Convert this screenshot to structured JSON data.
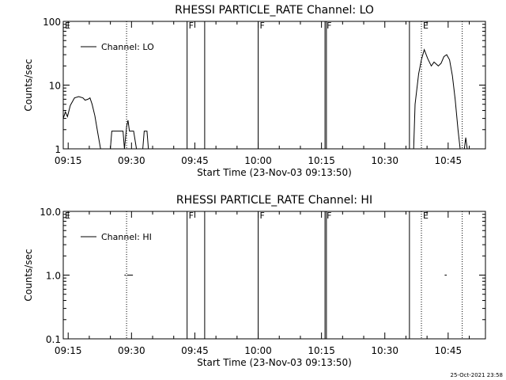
{
  "chart_data": [
    {
      "type": "line",
      "title": "RHESSI PARTICLE_RATE Channel: LO",
      "xlabel": "Start Time (23-Nov-03 09:13:50)",
      "ylabel": "Counts/sec",
      "yscale": "log",
      "ylim": [
        1,
        100
      ],
      "xlim": [
        "09:13:50",
        "10:53:50"
      ],
      "x_ticks": [
        "09:15",
        "09:30",
        "09:45",
        "10:00",
        "10:15",
        "10:30",
        "10:45"
      ],
      "y_ticks": [
        "1",
        "10",
        "100"
      ],
      "legend": {
        "position": "top-left",
        "entries": [
          "Channel: LO"
        ]
      },
      "series": [
        {
          "name": "Channel: LO",
          "segments": [
            [
              [
                "09:13:50",
                3.0
              ],
              [
                "09:14:20",
                3.8
              ],
              [
                "09:14:50",
                3.2
              ],
              [
                "09:15:30",
                4.8
              ],
              [
                "09:16:30",
                6.3
              ],
              [
                "09:17:30",
                6.6
              ],
              [
                "09:18:30",
                6.3
              ],
              [
                "09:19:00",
                5.8
              ],
              [
                "09:19:40",
                6.0
              ],
              [
                "09:20:10",
                6.3
              ],
              [
                "09:20:40",
                5.0
              ],
              [
                "09:21:20",
                3.3
              ],
              [
                "09:22:00",
                1.8
              ],
              [
                "09:22:40",
                1.0
              ]
            ],
            [
              [
                "09:25:00",
                1.0
              ],
              [
                "09:25:20",
                1.9
              ],
              [
                "09:26:00",
                1.9
              ],
              [
                "09:28:00",
                1.9
              ],
              [
                "09:28:20",
                1.0
              ],
              [
                "09:28:50",
                2.2
              ],
              [
                "09:29:10",
                2.8
              ],
              [
                "09:29:30",
                1.9
              ],
              [
                "09:30:30",
                1.9
              ],
              [
                "09:31:10",
                1.0
              ]
            ],
            [
              [
                "09:32:40",
                1.0
              ],
              [
                "09:33:00",
                1.9
              ],
              [
                "09:33:40",
                1.9
              ],
              [
                "09:34:00",
                1.0
              ]
            ],
            [
              [
                "10:36:50",
                1.0
              ],
              [
                "10:37:10",
                5.0
              ],
              [
                "10:38:00",
                15.0
              ],
              [
                "10:38:40",
                25.0
              ],
              [
                "10:39:20",
                36.0
              ],
              [
                "10:40:10",
                26.0
              ],
              [
                "10:41:00",
                20.0
              ],
              [
                "10:41:40",
                23.0
              ],
              [
                "10:42:40",
                20.0
              ],
              [
                "10:43:20",
                22.0
              ],
              [
                "10:44:00",
                28.0
              ],
              [
                "10:44:40",
                30.0
              ],
              [
                "10:45:20",
                25.0
              ],
              [
                "10:46:00",
                14.0
              ],
              [
                "10:46:40",
                6.0
              ],
              [
                "10:47:20",
                2.0
              ],
              [
                "10:47:50",
                1.0
              ]
            ],
            [
              [
                "10:48:50",
                1.0
              ],
              [
                "10:49:10",
                1.5
              ],
              [
                "10:49:30",
                1.0
              ]
            ]
          ]
        }
      ],
      "flag_lines": [
        {
          "time": "09:13:50",
          "label": "E",
          "style": "dotted"
        },
        {
          "time": "09:28:50",
          "label": "",
          "style": "dotted"
        },
        {
          "time": "09:43:10",
          "label": "F",
          "style": "solid"
        },
        {
          "time": "09:47:20",
          "label": "",
          "style": "solid"
        },
        {
          "time": "10:00:00",
          "label": "F",
          "style": "solid"
        },
        {
          "time": "10:15:50",
          "label": "F",
          "style": "solid"
        },
        {
          "time": "10:16:10",
          "label": "",
          "style": "solid"
        },
        {
          "time": "10:35:50",
          "label": "",
          "style": "solid"
        },
        {
          "time": "10:38:40",
          "label": "E",
          "style": "dotted"
        },
        {
          "time": "10:48:20",
          "label": "",
          "style": "dotted"
        }
      ]
    },
    {
      "type": "line",
      "title": "RHESSI PARTICLE_RATE Channel: HI",
      "xlabel": "Start Time (23-Nov-03 09:13:50)",
      "ylabel": "Counts/sec",
      "yscale": "log",
      "ylim": [
        0.1,
        10
      ],
      "xlim": [
        "09:13:50",
        "10:53:50"
      ],
      "x_ticks": [
        "09:15",
        "09:30",
        "09:45",
        "10:00",
        "10:15",
        "10:30",
        "10:45"
      ],
      "y_ticks": [
        "0.1",
        "1.0",
        "10.0"
      ],
      "legend": {
        "position": "top-left",
        "entries": [
          "Channel: HI"
        ]
      },
      "series": [
        {
          "name": "Channel: HI",
          "segments": [
            [
              [
                "09:28:20",
                1.0
              ],
              [
                "09:28:40",
                1.0
              ]
            ],
            [
              [
                "09:29:00",
                1.0
              ],
              [
                "09:30:20",
                1.0
              ]
            ],
            [
              [
                "10:44:10",
                1.0
              ],
              [
                "10:44:40",
                1.0
              ]
            ]
          ]
        }
      ],
      "flag_lines": [
        {
          "time": "09:13:50",
          "label": "E",
          "style": "dotted"
        },
        {
          "time": "09:28:50",
          "label": "",
          "style": "dotted"
        },
        {
          "time": "09:43:10",
          "label": "F",
          "style": "solid"
        },
        {
          "time": "09:47:20",
          "label": "",
          "style": "solid"
        },
        {
          "time": "10:00:00",
          "label": "F",
          "style": "solid"
        },
        {
          "time": "10:15:50",
          "label": "F",
          "style": "solid"
        },
        {
          "time": "10:16:10",
          "label": "",
          "style": "solid"
        },
        {
          "time": "10:35:50",
          "label": "",
          "style": "solid"
        },
        {
          "time": "10:38:40",
          "label": "E",
          "style": "dotted"
        },
        {
          "time": "10:48:20",
          "label": "",
          "style": "dotted"
        }
      ]
    }
  ],
  "footer": {
    "timestamp": "25-Oct-2021 23:58"
  }
}
